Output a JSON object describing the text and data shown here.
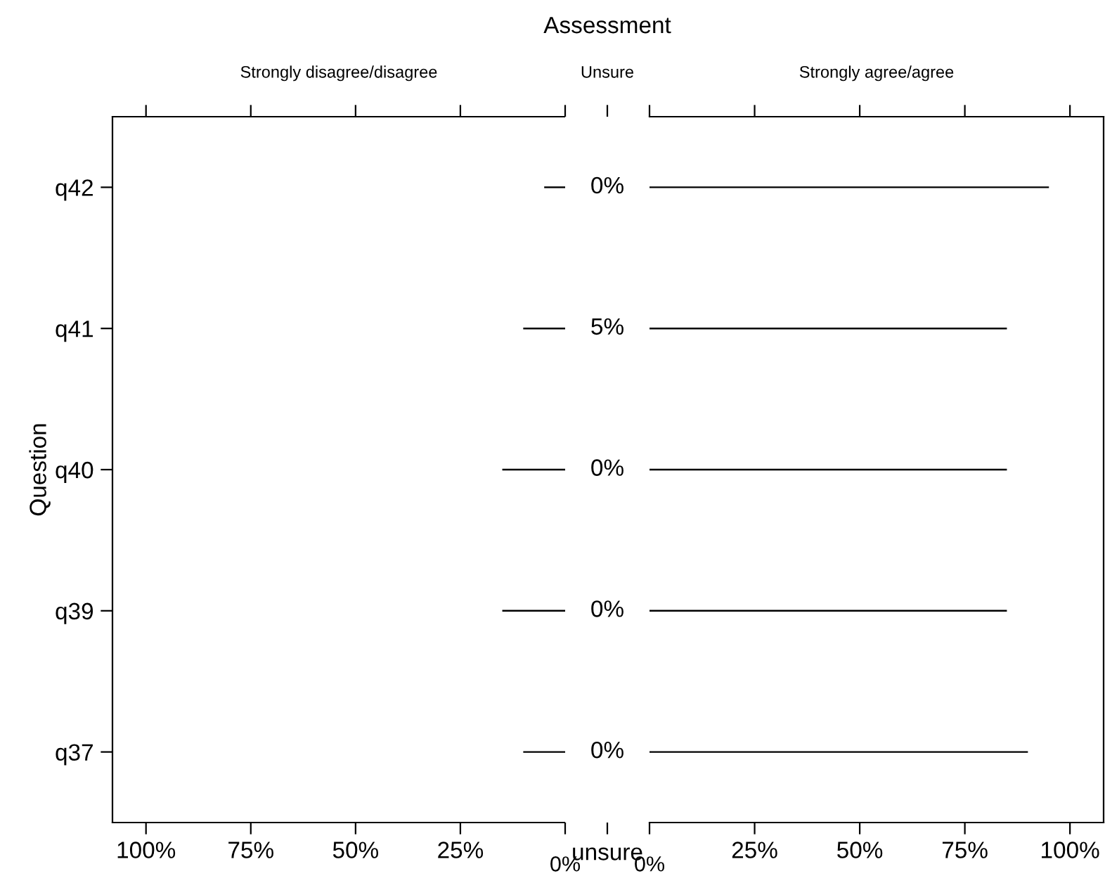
{
  "chart_data": [
    {
      "type": "bar",
      "orientation": "horizontal",
      "title": "Strongly disagree/disagree",
      "ylabel": "Question",
      "categories": [
        "q42",
        "q41",
        "q40",
        "q39",
        "q37"
      ],
      "values": [
        5,
        10,
        15,
        15,
        10
      ],
      "color": "#000000",
      "xlim": [
        108,
        0
      ],
      "xticks": [
        {
          "value": 100,
          "label": "100%"
        },
        {
          "value": 75,
          "label": "75%"
        },
        {
          "value": 50,
          "label": "50%"
        },
        {
          "value": 25,
          "label": "25%"
        },
        {
          "value": 0,
          "label": null
        }
      ],
      "annotations": [
        "0%"
      ]
    },
    {
      "type": "other",
      "title": "Unsure",
      "xlabel": "unsure",
      "annotations": [
        "Assessment"
      ],
      "values": [
        0,
        5,
        0,
        0,
        0
      ],
      "value_labels": [
        "0%",
        "5%",
        "0%",
        "0%",
        "0%"
      ]
    },
    {
      "type": "bar",
      "orientation": "horizontal",
      "title": "Strongly agree/agree",
      "values": [
        95,
        85,
        85,
        85,
        90
      ],
      "color": "#000000",
      "xlim": [
        0,
        108
      ],
      "xticks": [
        {
          "value": 0,
          "label": null
        },
        {
          "value": 25,
          "label": "25%"
        },
        {
          "value": 50,
          "label": "50%"
        },
        {
          "value": 75,
          "label": "75%"
        },
        {
          "value": 100,
          "label": "100%"
        }
      ],
      "tick_labels": "x",
      "annotations": [
        "0%"
      ]
    }
  ]
}
